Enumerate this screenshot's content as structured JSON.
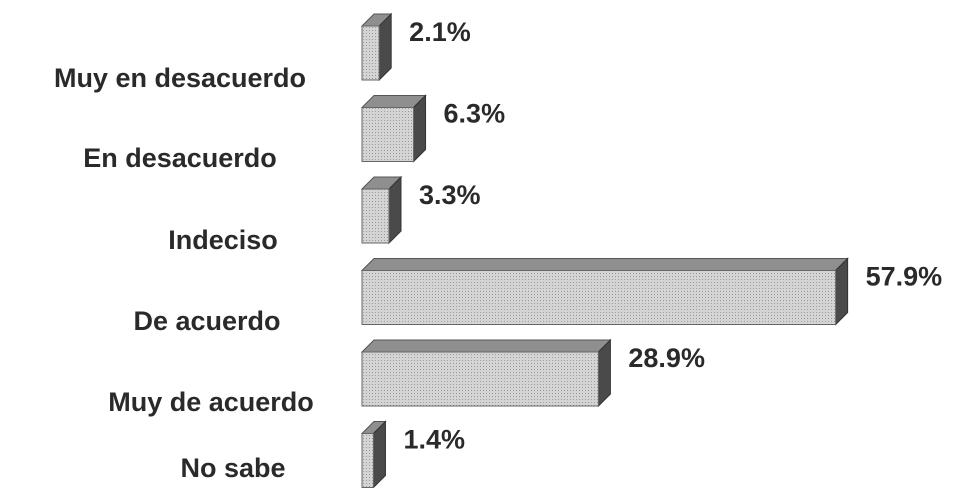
{
  "chart_data": {
    "type": "bar",
    "orientation": "horizontal",
    "categories": [
      "Muy en desacuerdo",
      "En desacuerdo",
      "Indeciso",
      "De acuerdo",
      "Muy de acuerdo",
      "No sabe"
    ],
    "values": [
      2.1,
      6.3,
      3.3,
      57.9,
      28.9,
      1.4
    ],
    "value_labels": [
      "2.1%",
      "6.3%",
      "3.3%",
      "57.9%",
      "28.9%",
      "1.4%"
    ],
    "color": "#c9c9c9"
  }
}
